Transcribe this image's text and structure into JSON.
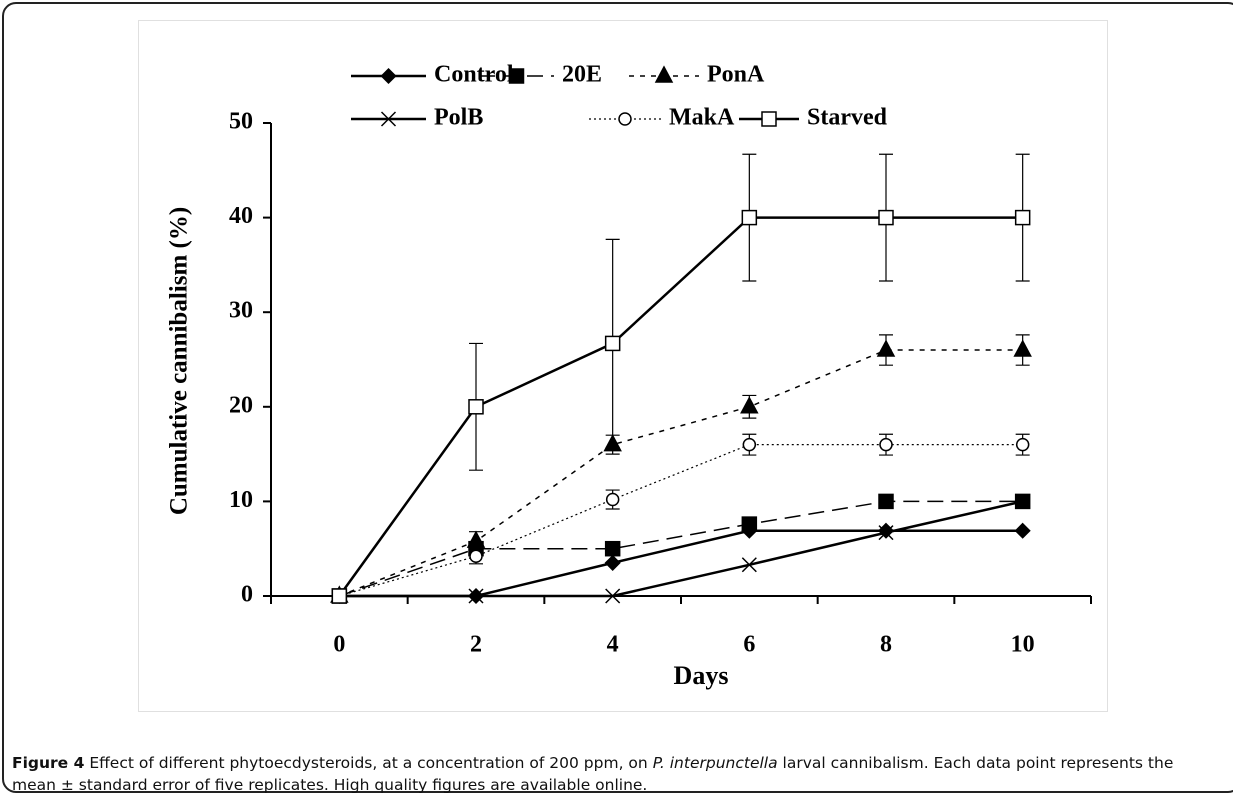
{
  "chart_data": {
    "type": "line",
    "x_label": "Days",
    "y_label": "Cumulative cannibalism (%)",
    "x": [
      0,
      2,
      4,
      6,
      8,
      10
    ],
    "xlim": [
      -1,
      11
    ],
    "xticks": [
      0,
      2,
      4,
      6,
      8,
      10
    ],
    "ylim": [
      0,
      50
    ],
    "yticks": [
      0,
      10,
      20,
      30,
      40,
      50
    ],
    "series": [
      {
        "name": "Controls",
        "color": "#000000",
        "dash": "solid",
        "marker": "diamond",
        "values": [
          0,
          0,
          3.5,
          6.9,
          6.9,
          6.9
        ]
      },
      {
        "name": "20E",
        "color": "#000000",
        "dash": "long",
        "marker": "square-filled",
        "values": [
          0,
          5,
          5,
          7.6,
          10,
          10
        ]
      },
      {
        "name": "PonA",
        "color": "#000000",
        "dash": "short",
        "marker": "triangle",
        "values": [
          0,
          5.8,
          16,
          20,
          26,
          26
        ],
        "errors": [
          0,
          1,
          1,
          1.2,
          1.6,
          1.6
        ]
      },
      {
        "name": "PolB",
        "color": "#000000",
        "dash": "solid",
        "marker": "x",
        "values": [
          0,
          0,
          0,
          3.3,
          6.7,
          10
        ]
      },
      {
        "name": "MakA",
        "color": "#000000",
        "dash": "dot",
        "marker": "circle-open",
        "values": [
          0,
          4.2,
          10.2,
          16,
          16,
          16
        ],
        "errors": [
          0,
          0.8,
          1,
          1.1,
          1.1,
          1.1
        ]
      },
      {
        "name": "Starved",
        "color": "#000000",
        "dash": "solid",
        "marker": "square-open",
        "values": [
          0,
          20,
          26.7,
          40,
          40,
          40
        ],
        "errors": [
          0,
          6.7,
          11,
          6.7,
          6.7,
          6.7
        ]
      }
    ]
  },
  "caption": {
    "label": "Figure 4",
    "text_before": "Effect of different phytoecdysteroids, at a concentration of 200 ppm, on",
    "species": "P. interpunctella",
    "text_after": "larval cannibalism. Each data point represents the mean ± standard error of five replicates. High quality figures are available online."
  }
}
